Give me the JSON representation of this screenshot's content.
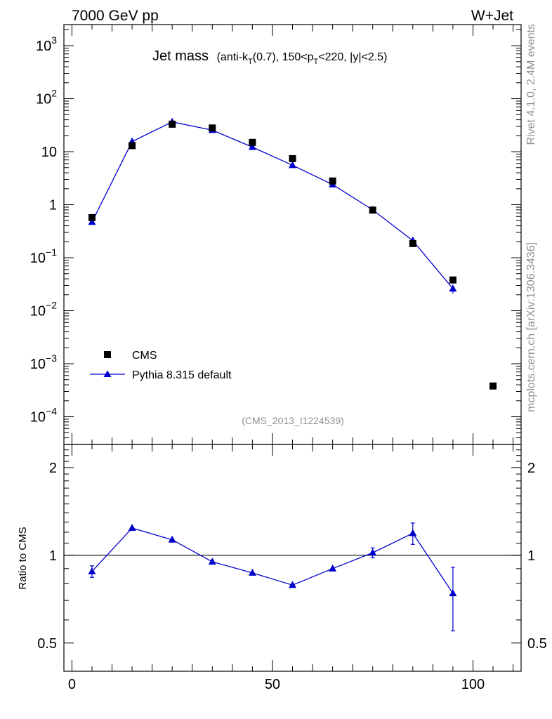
{
  "header": {
    "left": "7000 GeV pp",
    "right": "W+Jet"
  },
  "side_labels": {
    "rivet": "Rivet 4.1.0,  2.4M events",
    "mcplots": "mcplots.cern.ch [arXiv:1306.3436]"
  },
  "chart_data": [
    {
      "type": "scatter",
      "panel": "main",
      "title": "Jet mass",
      "subtitle_parts": {
        "pre": "(anti-k",
        "sub1": "T",
        "mid": "(0.7), 150<p",
        "sub2": "T",
        "post": "<220, |y|<2.5)"
      },
      "analysis_id": "(CMS_2013_I1224539)",
      "yscale": "log",
      "ylim": [
        3e-05,
        2500
      ],
      "xlim": [
        -2,
        112
      ],
      "ytick_labels": [
        {
          "value": 1000,
          "base": "10",
          "exp": "3"
        },
        {
          "value": 100,
          "base": "10",
          "exp": "2"
        },
        {
          "value": 10,
          "base": "10",
          "exp": ""
        },
        {
          "value": 1,
          "base": "1",
          "exp": ""
        },
        {
          "value": 0.1,
          "base": "10",
          "exp": "−1"
        },
        {
          "value": 0.01,
          "base": "10",
          "exp": "−2"
        },
        {
          "value": 0.001,
          "base": "10",
          "exp": "−3"
        },
        {
          "value": 0.0001,
          "base": "10",
          "exp": "−4"
        }
      ],
      "legend": {
        "position": "lower-left",
        "entries": [
          "CMS",
          "Pythia 8.315 default"
        ]
      },
      "series": [
        {
          "name": "CMS",
          "color": "#000000",
          "marker": "square",
          "x": [
            5,
            15,
            25,
            35,
            45,
            55,
            65,
            75,
            85,
            95,
            105
          ],
          "y": [
            0.57,
            13.0,
            33.0,
            28.0,
            15.0,
            7.4,
            2.8,
            0.79,
            0.185,
            0.038,
            0.00038
          ]
        },
        {
          "name": "Pythia 8.315 default",
          "color": "#0000cc",
          "marker": "triangle",
          "x": [
            5,
            15,
            25,
            35,
            45,
            55,
            65,
            75,
            85,
            95
          ],
          "y": [
            0.47,
            15.5,
            36.5,
            25.5,
            12.2,
            5.55,
            2.4,
            0.8,
            0.21,
            0.026
          ],
          "err_low": [
            0.03,
            0.5,
            1.0,
            0.8,
            0.4,
            0.2,
            0.08,
            0.03,
            0.015,
            0.005
          ],
          "err_high": [
            0.03,
            0.5,
            1.0,
            0.8,
            0.4,
            0.2,
            0.08,
            0.03,
            0.015,
            0.005
          ]
        }
      ]
    },
    {
      "type": "line",
      "panel": "ratio",
      "ylabel": "Ratio to CMS",
      "yscale": "log",
      "ylim": [
        0.4,
        2.4
      ],
      "xlim": [
        -2,
        112
      ],
      "reference_line": 1,
      "ytick_labels": [
        {
          "value": 2,
          "text": "2"
        },
        {
          "value": 1,
          "text": "1"
        },
        {
          "value": 0.5,
          "text": "0.5"
        }
      ],
      "xtick_labels": [
        {
          "value": 0,
          "text": "0"
        },
        {
          "value": 50,
          "text": "50"
        },
        {
          "value": 100,
          "text": "100"
        }
      ],
      "series": [
        {
          "name": "Pythia 8.315 default",
          "color": "#0000cc",
          "x": [
            5,
            15,
            25,
            35,
            45,
            55,
            65,
            75,
            85,
            95
          ],
          "y": [
            0.88,
            1.24,
            1.13,
            0.95,
            0.87,
            0.79,
            0.9,
            1.02,
            1.19,
            0.74
          ],
          "err_low": [
            0.04,
            0.01,
            0.01,
            0.01,
            0.01,
            0.01,
            0.02,
            0.04,
            0.1,
            0.19
          ],
          "err_high": [
            0.04,
            0.01,
            0.01,
            0.01,
            0.01,
            0.01,
            0.02,
            0.04,
            0.1,
            0.17
          ]
        }
      ]
    }
  ]
}
